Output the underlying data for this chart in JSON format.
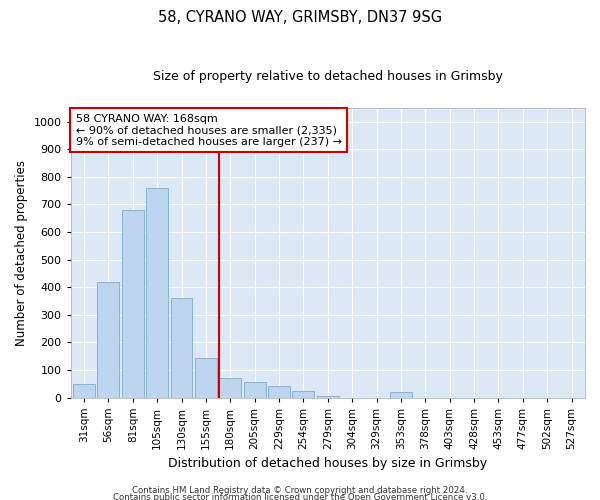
{
  "title": "58, CYRANO WAY, GRIMSBY, DN37 9SG",
  "subtitle": "Size of property relative to detached houses in Grimsby",
  "xlabel": "Distribution of detached houses by size in Grimsby",
  "ylabel": "Number of detached properties",
  "bin_labels": [
    "31sqm",
    "56sqm",
    "81sqm",
    "105sqm",
    "130sqm",
    "155sqm",
    "180sqm",
    "205sqm",
    "229sqm",
    "254sqm",
    "279sqm",
    "304sqm",
    "329sqm",
    "353sqm",
    "378sqm",
    "403sqm",
    "428sqm",
    "453sqm",
    "477sqm",
    "502sqm",
    "527sqm"
  ],
  "bin_values": [
    50,
    420,
    680,
    760,
    360,
    145,
    70,
    55,
    40,
    25,
    5,
    0,
    0,
    20,
    0,
    0,
    0,
    0,
    0,
    0,
    0
  ],
  "bar_color": "#bdd5ee",
  "bar_edge_color": "#7aadd4",
  "annotation_text": "58 CYRANO WAY: 168sqm\n← 90% of detached houses are smaller (2,335)\n9% of semi-detached houses are larger (237) →",
  "vline_color": "#cc0000",
  "vline_x": 5.52,
  "annotation_box_color": "#ffffff",
  "annotation_box_edge": "#cc0000",
  "ylim": [
    0,
    1050
  ],
  "yticks": [
    0,
    100,
    200,
    300,
    400,
    500,
    600,
    700,
    800,
    900,
    1000
  ],
  "bg_color": "#dce8f5",
  "grid_color": "#ffffff",
  "footer_line1": "Contains HM Land Registry data © Crown copyright and database right 2024.",
  "footer_line2": "Contains public sector information licensed under the Open Government Licence v3.0."
}
